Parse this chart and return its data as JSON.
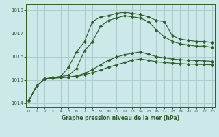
{
  "title": "Graphe pression niveau de la mer (hPa)",
  "bg_color": "#cce8e8",
  "grid_color": "#aacccc",
  "line_color": "#2d5f2d",
  "xlim": [
    -0.3,
    23.3
  ],
  "ylim": [
    1013.85,
    1018.25
  ],
  "yticks": [
    1014,
    1015,
    1016,
    1017,
    1018
  ],
  "xticks": [
    0,
    1,
    2,
    3,
    4,
    5,
    6,
    7,
    8,
    9,
    10,
    11,
    12,
    13,
    14,
    15,
    16,
    17,
    18,
    19,
    20,
    21,
    22,
    23
  ],
  "line1_x": [
    0,
    1,
    2,
    3,
    4,
    5,
    6,
    7,
    8,
    9,
    10,
    11,
    12,
    13,
    14,
    15,
    16,
    17,
    18,
    19,
    20,
    21,
    22,
    23
  ],
  "line1_y": [
    1014.1,
    1014.75,
    1015.05,
    1015.1,
    1015.15,
    1015.55,
    1016.2,
    1016.65,
    1017.5,
    1017.7,
    1017.75,
    1017.85,
    1017.9,
    1017.85,
    1017.8,
    1017.7,
    1017.55,
    1017.5,
    1016.9,
    1016.75,
    1016.7,
    1016.65,
    1016.65,
    1016.6
  ],
  "line2_x": [
    0,
    1,
    2,
    3,
    4,
    5,
    6,
    7,
    8,
    9,
    10,
    11,
    12,
    13,
    14,
    15,
    16,
    17,
    18,
    19,
    20,
    21,
    22,
    23
  ],
  "line2_y": [
    1014.1,
    1014.75,
    1015.05,
    1015.1,
    1015.15,
    1015.2,
    1015.5,
    1016.25,
    1016.65,
    1017.3,
    1017.55,
    1017.65,
    1017.75,
    1017.7,
    1017.65,
    1017.5,
    1017.15,
    1016.85,
    1016.65,
    1016.55,
    1016.5,
    1016.45,
    1016.45,
    1016.4
  ],
  "line3_x": [
    0,
    1,
    2,
    3,
    4,
    5,
    6,
    7,
    8,
    9,
    10,
    11,
    12,
    13,
    14,
    15,
    16,
    17,
    18,
    19,
    20,
    21,
    22,
    23
  ],
  "line3_y": [
    1014.1,
    1014.75,
    1015.05,
    1015.08,
    1015.1,
    1015.12,
    1015.18,
    1015.28,
    1015.45,
    1015.65,
    1015.85,
    1015.98,
    1016.08,
    1016.15,
    1016.2,
    1016.1,
    1016.0,
    1015.95,
    1015.9,
    1015.87,
    1015.85,
    1015.83,
    1015.82,
    1015.8
  ],
  "line4_x": [
    0,
    1,
    2,
    3,
    4,
    5,
    6,
    7,
    8,
    9,
    10,
    11,
    12,
    13,
    14,
    15,
    16,
    17,
    18,
    19,
    20,
    21,
    22,
    23
  ],
  "line4_y": [
    1014.1,
    1014.75,
    1015.05,
    1015.08,
    1015.1,
    1015.12,
    1015.15,
    1015.22,
    1015.32,
    1015.42,
    1015.55,
    1015.65,
    1015.75,
    1015.85,
    1015.9,
    1015.85,
    1015.78,
    1015.75,
    1015.72,
    1015.7,
    1015.68,
    1015.67,
    1015.66,
    1015.65
  ]
}
